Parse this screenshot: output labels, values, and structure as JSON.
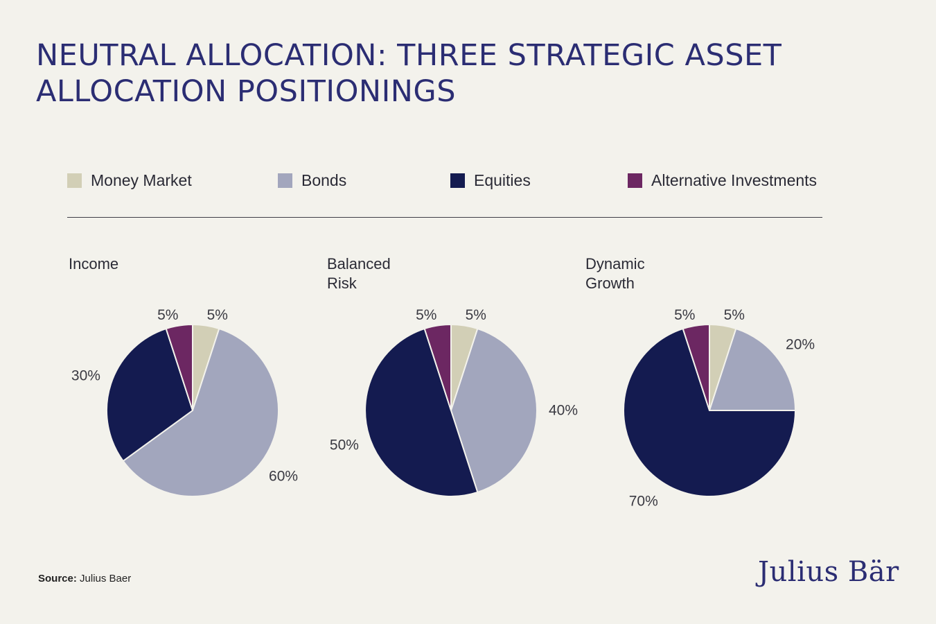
{
  "title": "NEUTRAL ALLOCATION: THREE STRATEGIC ASSET ALLOCATION POSITIONINGS",
  "legend": [
    {
      "label": "Money Market",
      "color": "#d2cfb6"
    },
    {
      "label": "Bonds",
      "color": "#a2a6bd"
    },
    {
      "label": "Equities",
      "color": "#141b50"
    },
    {
      "label": "Alternative Investments",
      "color": "#6c2762"
    }
  ],
  "source": {
    "label": "Source:",
    "text": "Julius Baer"
  },
  "logo": "Julius Bär",
  "chart_data": [
    {
      "type": "pie",
      "title": "Income",
      "categories": [
        "Money Market",
        "Bonds",
        "Equities",
        "Alternative Investments"
      ],
      "values": [
        5,
        60,
        30,
        5
      ],
      "labels": [
        "5%",
        "60%",
        "30%",
        "5%"
      ]
    },
    {
      "type": "pie",
      "title": "Balanced Risk",
      "categories": [
        "Money Market",
        "Bonds",
        "Equities",
        "Alternative Investments"
      ],
      "values": [
        5,
        40,
        50,
        5
      ],
      "labels": [
        "5%",
        "40%",
        "50%",
        "5%"
      ]
    },
    {
      "type": "pie",
      "title": "Dynamic Growth",
      "categories": [
        "Money Market",
        "Bonds",
        "Equities",
        "Alternative Investments"
      ],
      "values": [
        5,
        20,
        70,
        5
      ],
      "labels": [
        "5%",
        "20%",
        "70%",
        "5%"
      ]
    }
  ]
}
